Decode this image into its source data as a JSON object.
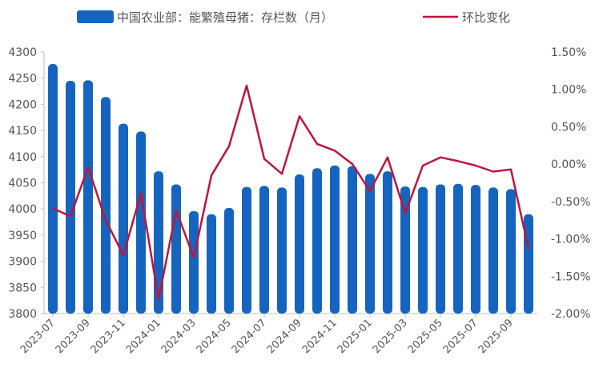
{
  "chart_data": {
    "type": "bar",
    "legend_position": "top",
    "grid": false,
    "x": [
      "2023-07",
      "2023-08",
      "2023-09",
      "2023-10",
      "2023-11",
      "2023-12",
      "2024-01",
      "2024-02",
      "2024-03",
      "2024-04",
      "2024-05",
      "2024-06",
      "2024-07",
      "2024-08",
      "2024-09",
      "2024-10",
      "2024-11",
      "2024-12",
      "2025-01",
      "2025-02",
      "2025-03",
      "2025-04",
      "2025-05",
      "2025-06",
      "2025-07",
      "2025-08",
      "2025-09",
      "2025-10"
    ],
    "x_tick_labels": [
      "2023-07",
      "2023-09",
      "2023-11",
      "2024-01",
      "2024-03",
      "2024-05",
      "2024-07",
      "2024-09",
      "2024-11",
      "2025-01",
      "2025-03",
      "2025-05",
      "2025-07",
      "2025-09"
    ],
    "y_left": {
      "min": 3800,
      "max": 4300,
      "ticks": [
        "3800",
        "3850",
        "3900",
        "3950",
        "4000",
        "4050",
        "4100",
        "4150",
        "4200",
        "4250",
        "4300"
      ]
    },
    "y_right": {
      "min": -2.0,
      "max": 1.5,
      "ticks": [
        "-2.00%",
        "-1.50%",
        "-1.00%",
        "-0.50%",
        "0.00%",
        "0.50%",
        "1.00%",
        "1.50%"
      ]
    },
    "series": [
      {
        "name": "中国农业部：能繁殖母猪：存栏数（月）",
        "type": "bar",
        "axis": "left",
        "color": "#1565C0",
        "values": [
          4277,
          4245,
          4246,
          4214,
          4163,
          4148,
          4072,
          4047,
          3996,
          3990,
          4002,
          4042,
          4044,
          4041,
          4066,
          4078,
          4083,
          4082,
          4067,
          4072,
          4043,
          4042,
          4047,
          4048,
          4046,
          4041,
          4038,
          3990
        ]
      },
      {
        "name": "环比变化",
        "type": "line",
        "axis": "right",
        "color": "#C0143C",
        "values": [
          -0.59,
          -0.7,
          -0.04,
          -0.75,
          -1.22,
          -0.39,
          -1.81,
          -0.62,
          -1.25,
          -0.15,
          0.24,
          1.05,
          0.07,
          -0.13,
          0.64,
          0.27,
          0.18,
          0.0,
          -0.36,
          0.09,
          -0.66,
          -0.02,
          0.09,
          0.04,
          -0.02,
          -0.1,
          -0.07,
          -1.13
        ]
      }
    ]
  }
}
